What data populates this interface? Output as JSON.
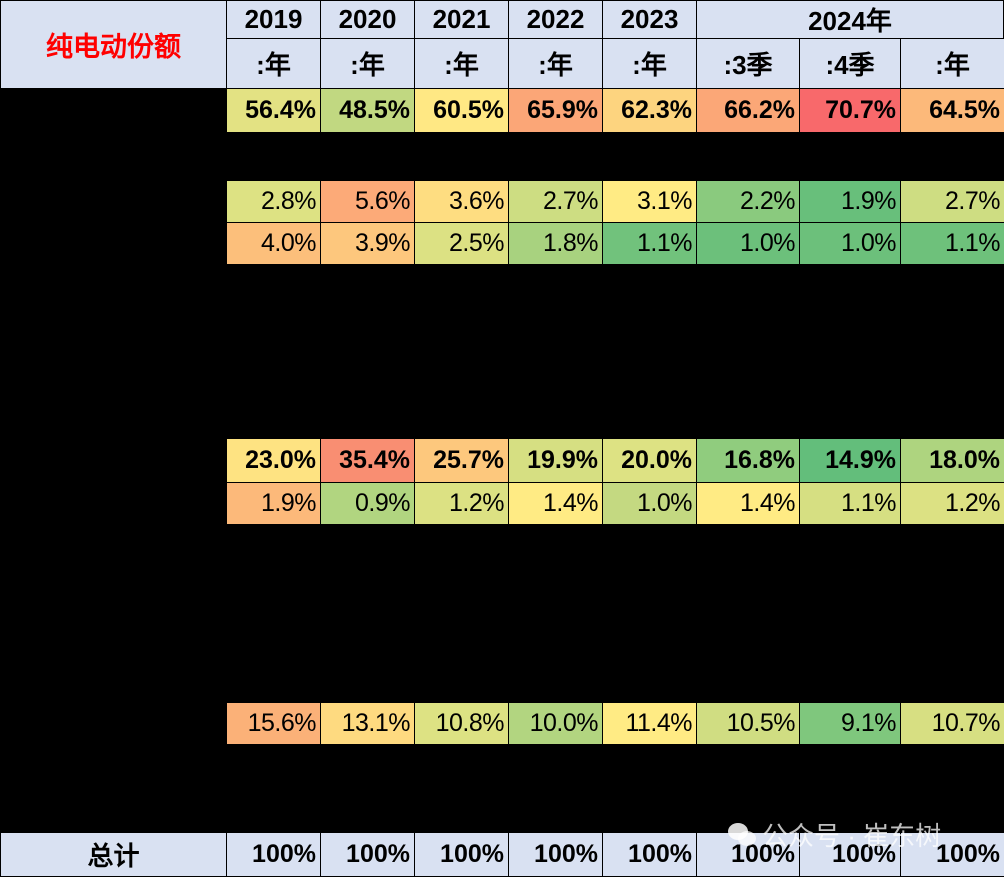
{
  "table": {
    "title": "纯电动份额",
    "year_headers": [
      "2019",
      "2020",
      "2021",
      "2022",
      "2023",
      "2024年"
    ],
    "period_headers": [
      ":年",
      ":年",
      ":年",
      ":年",
      ":年",
      ":3季",
      ":4季",
      ":年"
    ],
    "rows": [
      {
        "values": [
          "56.4%",
          "48.5%",
          "60.5%",
          "65.9%",
          "62.3%",
          "66.2%",
          "70.7%",
          "64.5%"
        ],
        "colors": [
          "#E3E283",
          "#C1D881",
          "#FFE884",
          "#FBA677",
          "#FDD47F",
          "#FBA777",
          "#F8696B",
          "#FCB97A"
        ],
        "bold": true
      },
      {
        "values": [
          "2.8%",
          "5.6%",
          "3.6%",
          "2.7%",
          "3.1%",
          "2.2%",
          "1.9%",
          "2.7%"
        ],
        "colors": [
          "#DDE283",
          "#FCAA78",
          "#FEDD81",
          "#CDDD82",
          "#FFEB84",
          "#8ACA7E",
          "#68BF7B",
          "#CEDD82"
        ],
        "bold": false
      },
      {
        "values": [
          "4.0%",
          "3.9%",
          "2.5%",
          "1.8%",
          "1.1%",
          "1.0%",
          "1.0%",
          "1.1%"
        ],
        "colors": [
          "#FCBF7B",
          "#FDC77D",
          "#DCE183",
          "#A8D27F",
          "#71C27C",
          "#6CC07B",
          "#6CC07B",
          "#6EC17B"
        ],
        "bold": false
      },
      {
        "values": [
          "23.0%",
          "35.4%",
          "25.7%",
          "19.9%",
          "20.0%",
          "16.8%",
          "14.9%",
          "18.0%"
        ],
        "colors": [
          "#FEE382",
          "#F98E72",
          "#FDC87D",
          "#D6DF82",
          "#DDE283",
          "#90CC7E",
          "#63BE7B",
          "#AED47F"
        ],
        "bold": true
      },
      {
        "values": [
          "1.9%",
          "0.9%",
          "1.2%",
          "1.4%",
          "1.0%",
          "1.4%",
          "1.1%",
          "1.2%"
        ],
        "colors": [
          "#FCB97A",
          "#B1D580",
          "#DCE183",
          "#FFEB84",
          "#C4D981",
          "#FFEB84",
          "#D6DF82",
          "#DCE183"
        ],
        "bold": false
      },
      {
        "values": [
          "15.6%",
          "13.1%",
          "10.8%",
          "10.0%",
          "11.4%",
          "10.5%",
          "9.1%",
          "10.7%"
        ],
        "colors": [
          "#FBB178",
          "#FEDA80",
          "#DDE283",
          "#B2D580",
          "#FFEB84",
          "#D0DD82",
          "#7FC77D",
          "#D7DF82"
        ],
        "bold": false
      }
    ],
    "total": {
      "label": "总计",
      "values": [
        "100%",
        "100%",
        "100%",
        "100%",
        "100%",
        "100%",
        "100%",
        "100%"
      ]
    }
  },
  "watermark": {
    "text": "公众号 · 崔东树"
  }
}
